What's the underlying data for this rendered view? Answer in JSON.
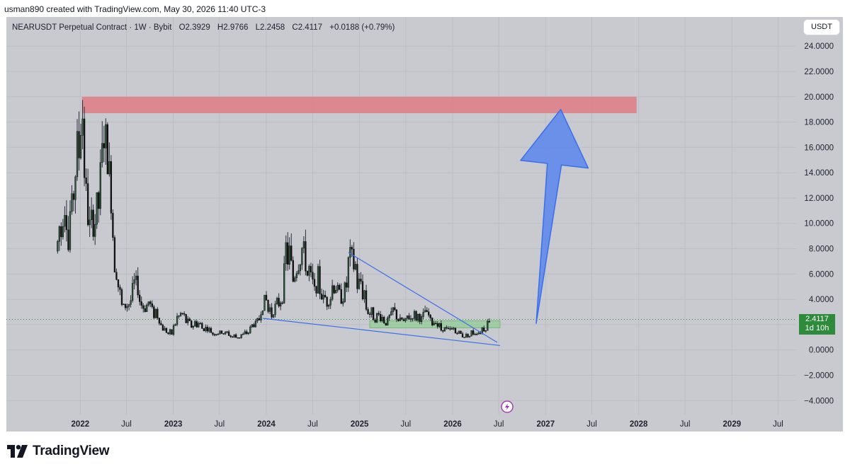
{
  "header": {
    "credit": "usman890 created with TradingView.com, May 30, 2026 11:40 UTC-3"
  },
  "legend": {
    "symbol": "NEARUSDT Perpetual Contract · 1W · Bybit",
    "open": "O2.3929",
    "high": "H2.9766",
    "low": "L2.2458",
    "close": "C2.4117",
    "change": "+0.0188 (+0.79%)"
  },
  "currency_button": "USDT",
  "price_tag": {
    "price": "2.4117",
    "countdown": "1d 10h"
  },
  "brand": {
    "name": "TradingView"
  },
  "colors": {
    "background": "#c8cad0",
    "candle_up": "#2d5a3d",
    "candle_down": "#111111",
    "resistance_zone": "#e07c85",
    "support_zone": "#8fcf92",
    "trendline": "#3a6ee8",
    "arrow": "#5b86ef"
  },
  "icons": {
    "lightning": "lightning-icon"
  },
  "chart_data": {
    "type": "candlestick",
    "symbol": "NEARUSDT",
    "interval": "1W",
    "y_axis": {
      "labels": [
        "24.0000",
        "22.0000",
        "20.0000",
        "18.0000",
        "16.0000",
        "14.0000",
        "12.0000",
        "10.0000",
        "8.0000",
        "6.0000",
        "4.0000",
        "2.0000",
        "0.0000",
        "−2.0000",
        "−4.0000"
      ],
      "values": [
        24,
        22,
        20,
        18,
        16,
        14,
        12,
        10,
        8,
        6,
        4,
        2,
        0,
        -2,
        -4
      ],
      "range": [
        -5.1,
        26.3
      ]
    },
    "x_axis": {
      "labels": [
        {
          "text": "2022",
          "date": "2022-01-01",
          "bold": true
        },
        {
          "text": "Jul",
          "date": "2022-07-01",
          "bold": false
        },
        {
          "text": "2023",
          "date": "2023-01-01",
          "bold": true
        },
        {
          "text": "Jul",
          "date": "2023-07-01",
          "bold": false
        },
        {
          "text": "2024",
          "date": "2024-01-01",
          "bold": true
        },
        {
          "text": "Jul",
          "date": "2024-07-01",
          "bold": false
        },
        {
          "text": "2025",
          "date": "2025-01-01",
          "bold": true
        },
        {
          "text": "Jul",
          "date": "2025-07-01",
          "bold": false
        },
        {
          "text": "2026",
          "date": "2026-01-01",
          "bold": true
        },
        {
          "text": "Jul",
          "date": "2026-07-01",
          "bold": false
        },
        {
          "text": "2027",
          "date": "2027-01-01",
          "bold": true
        },
        {
          "text": "Jul",
          "date": "2027-07-01",
          "bold": false
        },
        {
          "text": "2028",
          "date": "2028-01-01",
          "bold": true
        },
        {
          "text": "Jul",
          "date": "2028-07-01",
          "bold": false
        },
        {
          "text": "2029",
          "date": "2029-01-01",
          "bold": true
        },
        {
          "text": "Jul",
          "date": "2029-07-01",
          "bold": false
        }
      ],
      "range": [
        "2021-03-17",
        "2029-09-10"
      ]
    },
    "last_price": 2.4117,
    "price_path": [
      [
        "2021-10-04",
        7.8
      ],
      [
        "2021-10-18",
        10.0
      ],
      [
        "2021-11-01",
        12.0
      ],
      [
        "2021-11-15",
        8.5
      ],
      [
        "2021-11-29",
        11.5
      ],
      [
        "2021-12-13",
        15.0
      ],
      [
        "2021-12-27",
        17.0
      ],
      [
        "2022-01-10",
        19.5
      ],
      [
        "2022-01-24",
        12.0
      ],
      [
        "2022-02-07",
        9.5
      ],
      [
        "2022-02-21",
        10.0
      ],
      [
        "2022-03-07",
        11.5
      ],
      [
        "2022-03-21",
        13.5
      ],
      [
        "2022-04-04",
        17.0
      ],
      [
        "2022-04-18",
        15.0
      ],
      [
        "2022-05-02",
        12.0
      ],
      [
        "2022-05-16",
        7.0
      ],
      [
        "2022-05-30",
        5.5
      ],
      [
        "2022-06-13",
        3.2
      ],
      [
        "2022-06-27",
        3.6
      ],
      [
        "2022-07-11",
        4.0
      ],
      [
        "2022-07-25",
        4.8
      ],
      [
        "2022-08-08",
        5.3
      ],
      [
        "2022-08-22",
        4.3
      ],
      [
        "2022-09-05",
        3.5
      ],
      [
        "2022-09-19",
        3.3
      ],
      [
        "2022-10-03",
        3.4
      ],
      [
        "2022-10-17",
        2.9
      ],
      [
        "2022-10-31",
        2.8
      ],
      [
        "2022-11-14",
        1.8
      ],
      [
        "2022-11-28",
        1.6
      ],
      [
        "2022-12-12",
        1.45
      ],
      [
        "2022-12-26",
        1.4
      ],
      [
        "2023-01-09",
        2.2
      ],
      [
        "2023-01-23",
        2.5
      ],
      [
        "2023-02-06",
        2.6
      ],
      [
        "2023-02-20",
        2.4
      ],
      [
        "2023-03-06",
        2.1
      ],
      [
        "2023-03-20",
        2.0
      ],
      [
        "2023-04-03",
        2.0
      ],
      [
        "2023-04-17",
        1.9
      ],
      [
        "2023-05-01",
        1.7
      ],
      [
        "2023-05-15",
        1.6
      ],
      [
        "2023-05-29",
        1.45
      ],
      [
        "2023-06-12",
        1.3
      ],
      [
        "2023-06-26",
        1.35
      ],
      [
        "2023-07-10",
        1.4
      ],
      [
        "2023-07-24",
        1.3
      ],
      [
        "2023-08-07",
        1.25
      ],
      [
        "2023-08-21",
        1.1
      ],
      [
        "2023-09-04",
        1.05
      ],
      [
        "2023-09-18",
        1.1
      ],
      [
        "2023-10-02",
        1.15
      ],
      [
        "2023-10-16",
        1.4
      ],
      [
        "2023-10-30",
        1.7
      ],
      [
        "2023-11-13",
        2.0
      ],
      [
        "2023-11-27",
        2.3
      ],
      [
        "2023-12-11",
        3.0
      ],
      [
        "2023-12-25",
        4.0
      ],
      [
        "2024-01-08",
        3.3
      ],
      [
        "2024-01-22",
        3.0
      ],
      [
        "2024-02-05",
        3.3
      ],
      [
        "2024-02-19",
        3.9
      ],
      [
        "2024-03-04",
        4.3
      ],
      [
        "2024-03-18",
        7.8
      ],
      [
        "2024-04-01",
        7.3
      ],
      [
        "2024-04-15",
        6.0
      ],
      [
        "2024-04-29",
        6.5
      ],
      [
        "2024-05-13",
        7.2
      ],
      [
        "2024-05-27",
        7.6
      ],
      [
        "2024-06-10",
        6.4
      ],
      [
        "2024-06-24",
        5.5
      ],
      [
        "2024-07-08",
        4.6
      ],
      [
        "2024-07-22",
        5.8
      ],
      [
        "2024-08-05",
        4.3
      ],
      [
        "2024-08-19",
        3.8
      ],
      [
        "2024-09-02",
        4.0
      ],
      [
        "2024-09-16",
        4.6
      ],
      [
        "2024-09-30",
        5.2
      ],
      [
        "2024-10-14",
        4.3
      ],
      [
        "2024-10-28",
        4.2
      ],
      [
        "2024-11-11",
        5.5
      ],
      [
        "2024-11-25",
        7.5
      ],
      [
        "2024-12-09",
        6.8
      ],
      [
        "2024-12-23",
        5.2
      ],
      [
        "2025-01-06",
        4.8
      ],
      [
        "2025-01-20",
        4.2
      ],
      [
        "2025-02-03",
        3.2
      ],
      [
        "2025-02-17",
        3.0
      ],
      [
        "2025-03-03",
        2.5
      ],
      [
        "2025-03-17",
        2.6
      ],
      [
        "2025-03-31",
        2.4
      ],
      [
        "2025-04-14",
        2.2
      ],
      [
        "2025-04-28",
        2.5
      ],
      [
        "2025-05-12",
        3.0
      ],
      [
        "2025-05-26",
        2.7
      ],
      [
        "2025-06-09",
        2.3
      ],
      [
        "2025-06-23",
        2.1
      ],
      [
        "2025-07-07",
        2.4
      ],
      [
        "2025-07-21",
        2.8
      ],
      [
        "2025-08-04",
        2.7
      ],
      [
        "2025-08-18",
        2.5
      ],
      [
        "2025-09-01",
        2.4
      ],
      [
        "2025-09-15",
        2.9
      ],
      [
        "2025-09-29",
        2.6
      ],
      [
        "2025-10-13",
        2.1
      ],
      [
        "2025-10-27",
        2.4
      ],
      [
        "2025-11-10",
        1.9
      ],
      [
        "2025-11-24",
        1.7
      ],
      [
        "2025-12-08",
        1.6
      ],
      [
        "2025-12-22",
        1.5
      ],
      [
        "2026-01-05",
        1.6
      ],
      [
        "2026-01-19",
        1.45
      ],
      [
        "2026-02-02",
        1.2
      ],
      [
        "2026-02-16",
        1.1
      ],
      [
        "2026-03-02",
        1.2
      ],
      [
        "2026-03-16",
        1.35
      ],
      [
        "2026-03-30",
        1.4
      ],
      [
        "2026-04-13",
        1.45
      ],
      [
        "2026-04-27",
        1.6
      ],
      [
        "2026-05-11",
        1.7
      ],
      [
        "2026-05-25",
        2.4
      ]
    ],
    "drawings": {
      "resistance_zone": {
        "x_from": "2022-01-08",
        "x_to": "2027-12-24",
        "y_from": 18.7,
        "y_to": 20.0
      },
      "support_zone": {
        "x_from": "2025-02-10",
        "x_to": "2026-07-06",
        "y_from": 1.75,
        "y_to": 2.3
      },
      "wedge_upper_line": [
        [
          "2024-11-18",
          7.7
        ],
        [
          "2026-06-25",
          0.6
        ]
      ],
      "wedge_lower_line": [
        [
          "2023-12-18",
          2.5
        ],
        [
          "2026-07-06",
          0.35
        ]
      ],
      "target_arrow": {
        "base": [
          "2026-11-25",
          2.1
        ],
        "tip": [
          "2027-03-01",
          19.0
        ]
      },
      "last_price_line": 2.4117
    }
  }
}
